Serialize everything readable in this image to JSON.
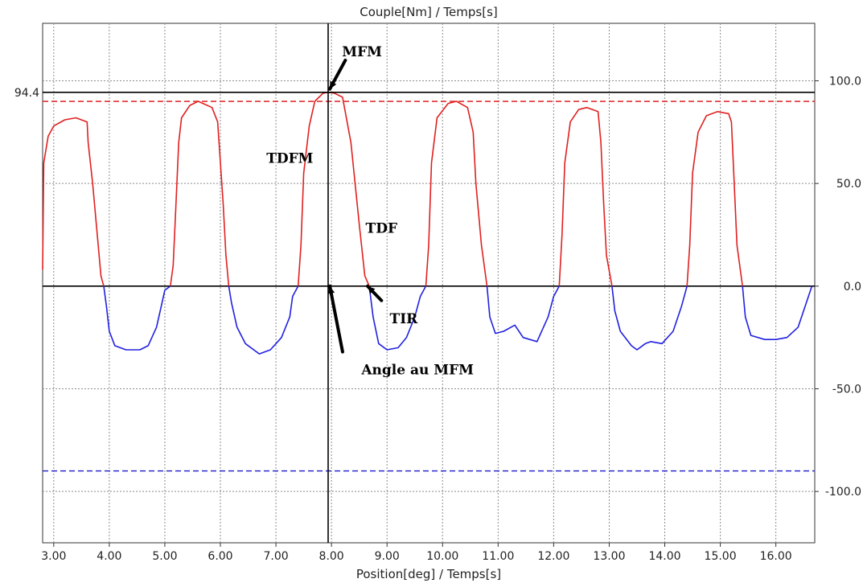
{
  "chart_data": {
    "type": "line",
    "title": "Couple[Nm] / Temps[s]",
    "xlabel": "Position[deg] / Temps[s]",
    "ylabel": "",
    "xlim": [
      2.8,
      16.7
    ],
    "ylim": [
      -125,
      128
    ],
    "x_ticks": [
      "3.00",
      "4.00",
      "5.00",
      "6.00",
      "7.00",
      "8.00",
      "9.00",
      "10.00",
      "11.00",
      "12.00",
      "13.00",
      "14.00",
      "15.00",
      "16.00"
    ],
    "y_ticks_right": [
      "100.0",
      "50.0",
      "0.0",
      "-50.0",
      "-100.0"
    ],
    "y_tick_values": [
      100,
      50,
      0,
      -50,
      -100
    ],
    "cursor": {
      "x": 7.94,
      "y": 94.4,
      "y_label": "94.4"
    },
    "ref_lines": [
      {
        "y": 90,
        "color": "#e03030",
        "style": "dashed"
      },
      {
        "y": -90,
        "color": "#2a2ad0",
        "style": "dashed"
      }
    ],
    "grid": true,
    "series": [
      {
        "color": "#e02020",
        "segments": [
          [
            [
              2.8,
              8
            ],
            [
              2.82,
              60
            ],
            [
              2.9,
              73
            ],
            [
              3.0,
              78
            ],
            [
              3.2,
              81
            ],
            [
              3.4,
              82
            ],
            [
              3.6,
              80
            ],
            [
              3.62,
              70
            ],
            [
              3.7,
              50
            ],
            [
              3.8,
              20
            ],
            [
              3.85,
              5
            ],
            [
              3.9,
              0
            ]
          ],
          [
            [
              5.1,
              0
            ],
            [
              5.15,
              10
            ],
            [
              5.2,
              40
            ],
            [
              5.25,
              70
            ],
            [
              5.3,
              82
            ],
            [
              5.45,
              88
            ],
            [
              5.6,
              90
            ],
            [
              5.85,
              87
            ],
            [
              5.95,
              80
            ],
            [
              6.05,
              40
            ],
            [
              6.1,
              15
            ],
            [
              6.15,
              0
            ]
          ],
          [
            [
              7.4,
              0
            ],
            [
              7.45,
              20
            ],
            [
              7.5,
              55
            ],
            [
              7.6,
              78
            ],
            [
              7.7,
              90
            ],
            [
              7.85,
              94
            ],
            [
              7.94,
              94.4
            ],
            [
              8.05,
              94
            ],
            [
              8.2,
              92
            ],
            [
              8.35,
              70
            ],
            [
              8.5,
              30
            ],
            [
              8.6,
              5
            ],
            [
              8.68,
              0
            ]
          ],
          [
            [
              9.7,
              0
            ],
            [
              9.75,
              20
            ],
            [
              9.8,
              60
            ],
            [
              9.9,
              82
            ],
            [
              10.1,
              89
            ],
            [
              10.25,
              90
            ],
            [
              10.45,
              87
            ],
            [
              10.55,
              75
            ],
            [
              10.6,
              50
            ],
            [
              10.7,
              20
            ],
            [
              10.8,
              0
            ]
          ],
          [
            [
              12.1,
              0
            ],
            [
              12.15,
              25
            ],
            [
              12.2,
              60
            ],
            [
              12.3,
              80
            ],
            [
              12.45,
              86
            ],
            [
              12.6,
              87
            ],
            [
              12.8,
              85
            ],
            [
              12.85,
              70
            ],
            [
              12.9,
              40
            ],
            [
              12.95,
              15
            ],
            [
              13.05,
              0
            ]
          ],
          [
            [
              14.4,
              0
            ],
            [
              14.45,
              20
            ],
            [
              14.5,
              55
            ],
            [
              14.6,
              75
            ],
            [
              14.75,
              83
            ],
            [
              14.95,
              85
            ],
            [
              15.15,
              84
            ],
            [
              15.2,
              80
            ],
            [
              15.25,
              50
            ],
            [
              15.3,
              20
            ],
            [
              15.4,
              0
            ]
          ]
        ]
      },
      {
        "color": "#2020e0",
        "segments": [
          [
            [
              3.9,
              0
            ],
            [
              3.95,
              -10
            ],
            [
              4.0,
              -22
            ],
            [
              4.1,
              -29
            ],
            [
              4.3,
              -31
            ],
            [
              4.55,
              -31
            ],
            [
              4.7,
              -29
            ],
            [
              4.85,
              -20
            ],
            [
              4.95,
              -8
            ],
            [
              5.0,
              -2
            ],
            [
              5.1,
              0
            ]
          ],
          [
            [
              6.15,
              0
            ],
            [
              6.2,
              -8
            ],
            [
              6.3,
              -20
            ],
            [
              6.45,
              -28
            ],
            [
              6.7,
              -33
            ],
            [
              6.9,
              -31
            ],
            [
              7.1,
              -25
            ],
            [
              7.25,
              -15
            ],
            [
              7.3,
              -5
            ],
            [
              7.4,
              0
            ]
          ],
          [
            [
              8.68,
              0
            ],
            [
              8.75,
              -15
            ],
            [
              8.85,
              -28
            ],
            [
              9.0,
              -31
            ],
            [
              9.2,
              -30
            ],
            [
              9.35,
              -25
            ],
            [
              9.5,
              -15
            ],
            [
              9.6,
              -5
            ],
            [
              9.7,
              0
            ]
          ],
          [
            [
              10.8,
              0
            ],
            [
              10.85,
              -15
            ],
            [
              10.95,
              -23
            ],
            [
              11.1,
              -22
            ],
            [
              11.3,
              -19
            ],
            [
              11.45,
              -25
            ],
            [
              11.7,
              -27
            ],
            [
              11.9,
              -15
            ],
            [
              12.0,
              -5
            ],
            [
              12.1,
              0
            ]
          ],
          [
            [
              13.05,
              0
            ],
            [
              13.1,
              -12
            ],
            [
              13.2,
              -22
            ],
            [
              13.4,
              -29
            ],
            [
              13.5,
              -31
            ],
            [
              13.65,
              -28
            ],
            [
              13.75,
              -27
            ],
            [
              13.95,
              -28
            ],
            [
              14.15,
              -22
            ],
            [
              14.3,
              -10
            ],
            [
              14.4,
              0
            ]
          ],
          [
            [
              15.4,
              0
            ],
            [
              15.45,
              -15
            ],
            [
              15.55,
              -24
            ],
            [
              15.8,
              -26
            ],
            [
              16.0,
              -26
            ],
            [
              16.2,
              -25
            ],
            [
              16.4,
              -20
            ],
            [
              16.55,
              -8
            ],
            [
              16.65,
              0
            ]
          ]
        ]
      }
    ],
    "annotations": [
      {
        "text": "MFM",
        "x": 8.55,
        "y": 112
      },
      {
        "text": "TDFM",
        "x": 7.25,
        "y": 60
      },
      {
        "text": "TDF",
        "x": 8.9,
        "y": 26
      },
      {
        "text": "TIR",
        "x": 9.3,
        "y": -18
      },
      {
        "text": "Angle au MFM",
        "x": 9.55,
        "y": -43
      }
    ],
    "arrows": [
      {
        "from": [
          8.25,
          110
        ],
        "to": [
          7.97,
          96
        ]
      },
      {
        "from": [
          8.9,
          -7
        ],
        "to": [
          8.65,
          0
        ]
      },
      {
        "from": [
          8.2,
          -32
        ],
        "to": [
          7.97,
          0
        ]
      }
    ]
  }
}
